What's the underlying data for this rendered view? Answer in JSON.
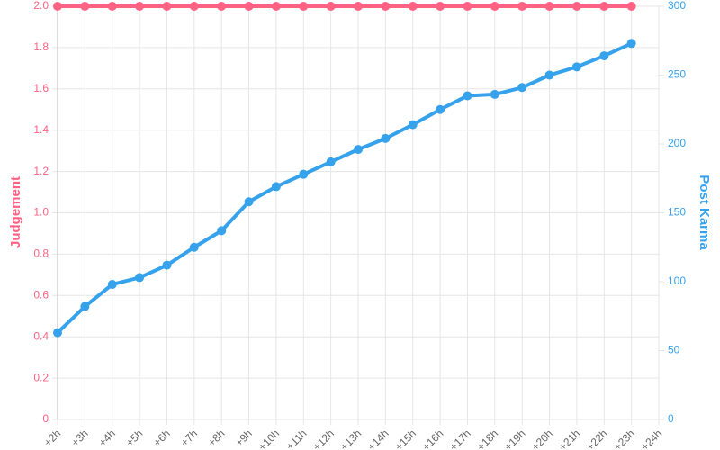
{
  "chart_data": {
    "type": "line",
    "x_label": null,
    "y_label": "Judgement",
    "y2_label": "Post Karma",
    "categories": [
      "+2h",
      "+3h",
      "+4h",
      "+5h",
      "+6h",
      "+7h",
      "+8h",
      "+9h",
      "+10h",
      "+11h",
      "+12h",
      "+13h",
      "+14h",
      "+15h",
      "+16h",
      "+17h",
      "+18h",
      "+19h",
      "+20h",
      "+21h",
      "+22h",
      "+23h",
      "+24h"
    ],
    "series": [
      {
        "name": "Judgement",
        "color": "#ff6384",
        "axis": "y",
        "values": [
          2,
          2,
          2,
          2,
          2,
          2,
          2,
          2,
          2,
          2,
          2,
          2,
          2,
          2,
          2,
          2,
          2,
          2,
          2,
          2,
          2,
          2,
          null
        ]
      },
      {
        "name": "Post Karma",
        "color": "#36a2eb",
        "axis": "y2",
        "values": [
          63,
          82,
          98,
          103,
          112,
          125,
          137,
          158,
          169,
          178,
          187,
          196,
          204,
          214,
          225,
          235,
          236,
          241,
          250,
          256,
          264,
          273,
          null
        ]
      }
    ],
    "ylim": [
      0,
      2
    ],
    "yticks": [
      0,
      0.2,
      0.4,
      0.6,
      0.8,
      {
        "value": 1,
        "label": "1.0"
      },
      1.2,
      1.4,
      1.6,
      1.8,
      {
        "value": 2,
        "label": "2.0"
      }
    ],
    "y2lim": [
      0,
      300
    ],
    "y2ticks": [
      0,
      50,
      100,
      150,
      200,
      250,
      300
    ],
    "grid": true
  }
}
